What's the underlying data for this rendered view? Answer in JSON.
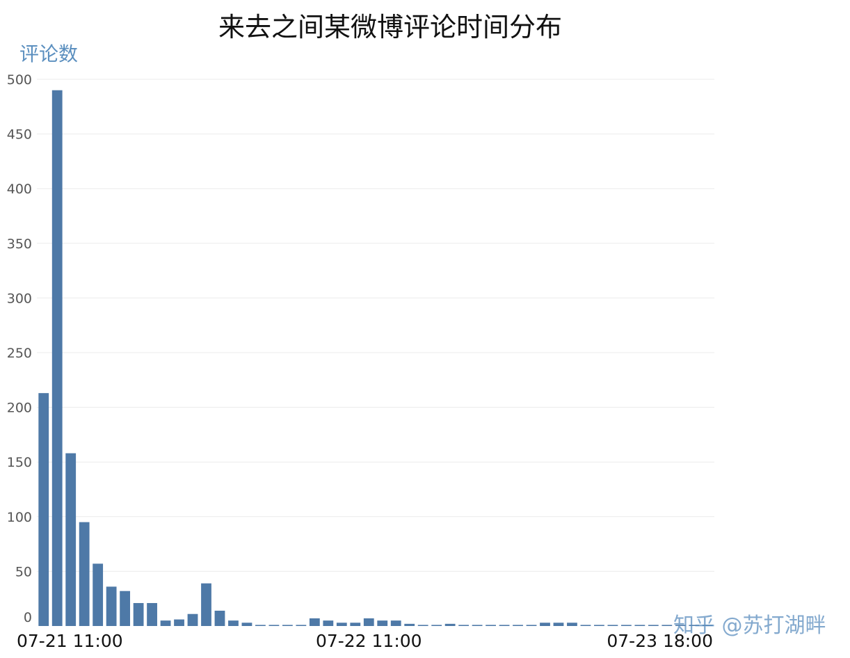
{
  "chart_data": {
    "type": "bar",
    "title": "来去之间某微博评论时间分布",
    "ylabel": "评论数",
    "xlabel": "",
    "ylim": [
      0,
      500
    ],
    "yticks": [
      0,
      50,
      100,
      150,
      200,
      250,
      300,
      350,
      400,
      450,
      500
    ],
    "grid": true,
    "color": "#4e79a7",
    "x_tick_labels": [
      {
        "label": "07-21 11:00",
        "index": 0
      },
      {
        "label": "07-22 11:00",
        "index": 24
      },
      {
        "label": "07-23 18:00",
        "index": 49
      }
    ],
    "values": [
      213,
      490,
      158,
      95,
      57,
      36,
      32,
      21,
      21,
      5,
      6,
      11,
      39,
      14,
      5,
      3,
      1,
      1,
      1,
      1,
      7,
      5,
      3,
      3,
      7,
      5,
      5,
      2,
      1,
      1,
      2,
      1,
      1,
      1,
      1,
      1,
      1,
      3,
      3,
      3,
      1,
      1,
      1,
      1,
      1,
      1,
      1,
      1,
      1,
      1
    ]
  },
  "watermark": "知乎 @苏打湖畔"
}
